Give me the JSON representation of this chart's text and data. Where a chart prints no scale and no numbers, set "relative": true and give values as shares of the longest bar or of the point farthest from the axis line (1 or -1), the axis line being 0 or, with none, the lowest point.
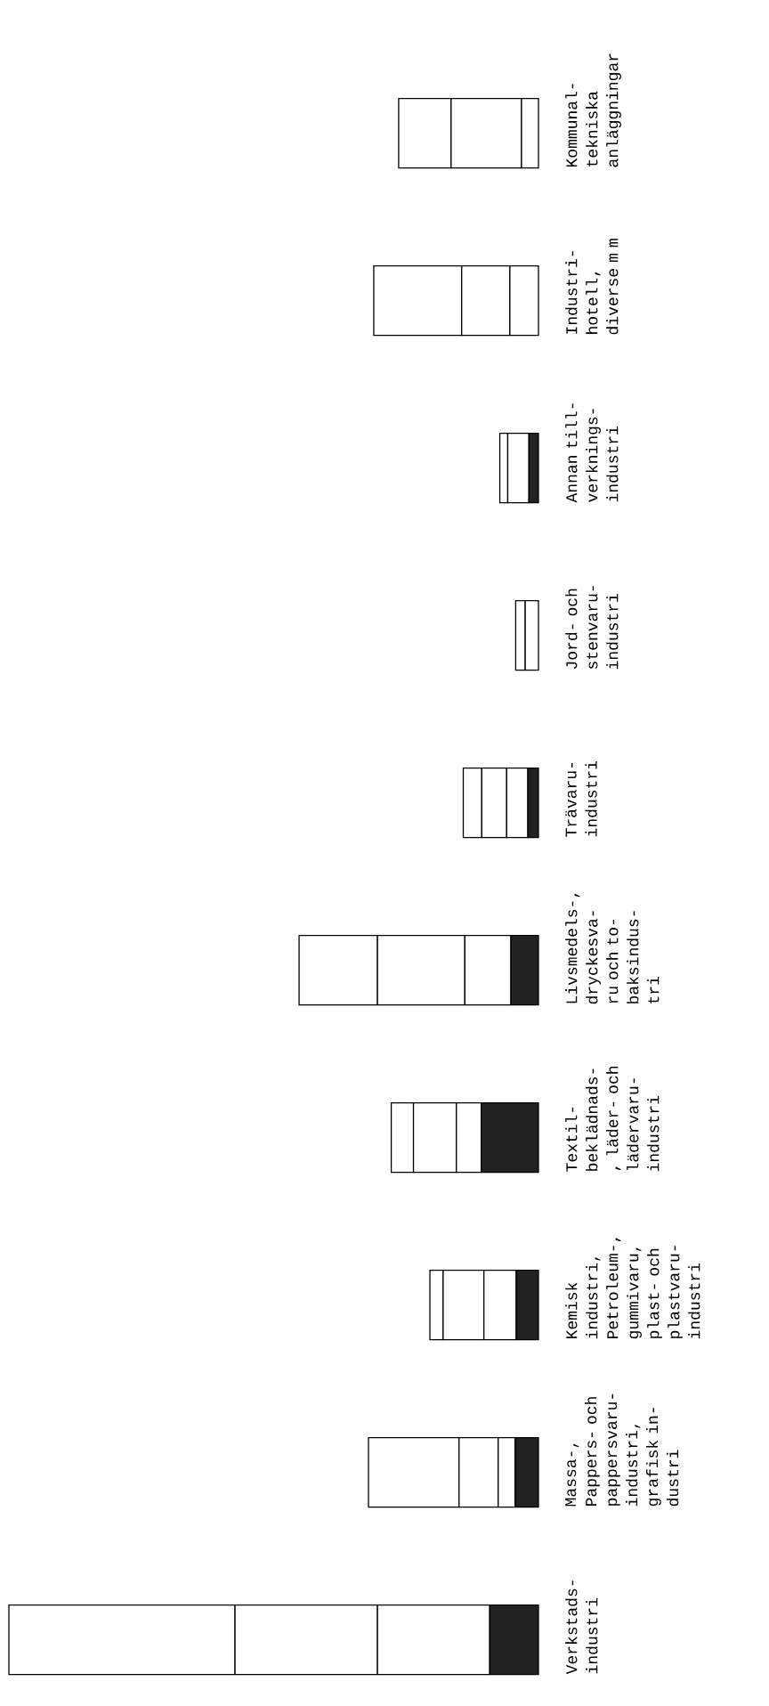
{
  "chart_data": {
    "type": "bar",
    "orientation": "horizontal",
    "stacked": true,
    "relative": true,
    "categories": [
      "Kommunal- tekniska anläggningar",
      "Industri- hotell, diverse m m",
      "Annan till- verknings- industri",
      "Jord- och stenvaru- industri",
      "Trävaru- industri",
      "Livsmedels-, dryckesva- ru och to- baksindus- tri",
      "Textil- beklädnads-, läder- och lädervaru- industri",
      "Kemisk industri, Petroleum-, gummivaru, plast- och plastvaru- industri",
      "Massa-, Pappers- och pappersvaru- industri, grafisk in- dustri",
      "Verkstads- industri"
    ],
    "series": [
      {
        "color": "#222222",
        "values": [
          0,
          0,
          0.018,
          0,
          0.02,
          0.052,
          0.108,
          0.042,
          0.044,
          0.092
        ]
      },
      {
        "color": "#ffffff",
        "values": [
          0.032,
          0.054,
          0.04,
          0.025,
          0.04,
          0.087,
          0.047,
          0.061,
          0.032,
          0.212
        ]
      },
      {
        "color": "#ffffff",
        "values": [
          0.133,
          0.091,
          0,
          0.018,
          0.047,
          0.165,
          0.081,
          0.077,
          0.074,
          0.269
        ]
      },
      {
        "color": "#ffffff",
        "values": [
          0.099,
          0.166,
          0.015,
          0,
          0.035,
          0.148,
          0.042,
          0.025,
          0.171,
          0.427
        ]
      }
    ]
  }
}
